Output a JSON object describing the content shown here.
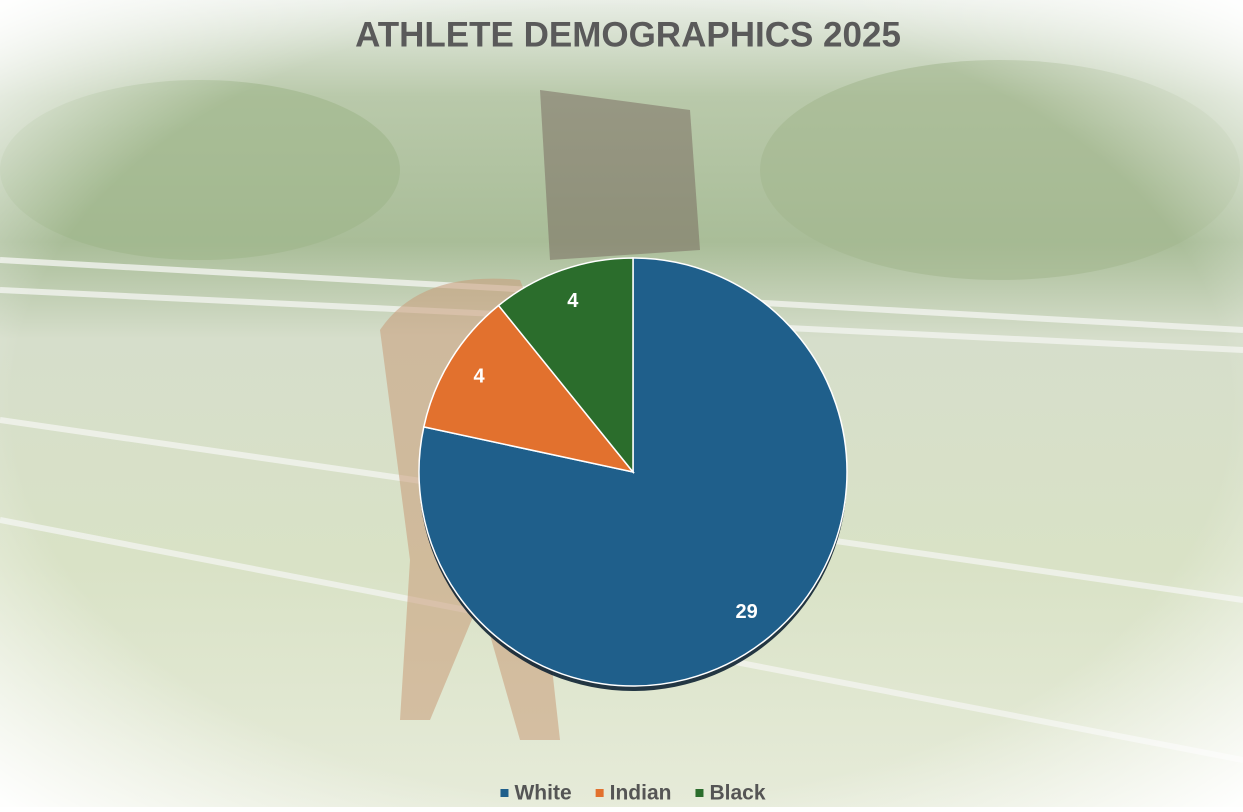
{
  "chart_data": {
    "type": "pie",
    "title": "ATHLETE DEMOGRAPHICS 2025",
    "categories": [
      "White",
      "Indian",
      "Black"
    ],
    "values": [
      29,
      4,
      4
    ],
    "colors": [
      "#1f5f8b",
      "#e2712e",
      "#2b6d2c"
    ],
    "legend": "bottom"
  }
}
